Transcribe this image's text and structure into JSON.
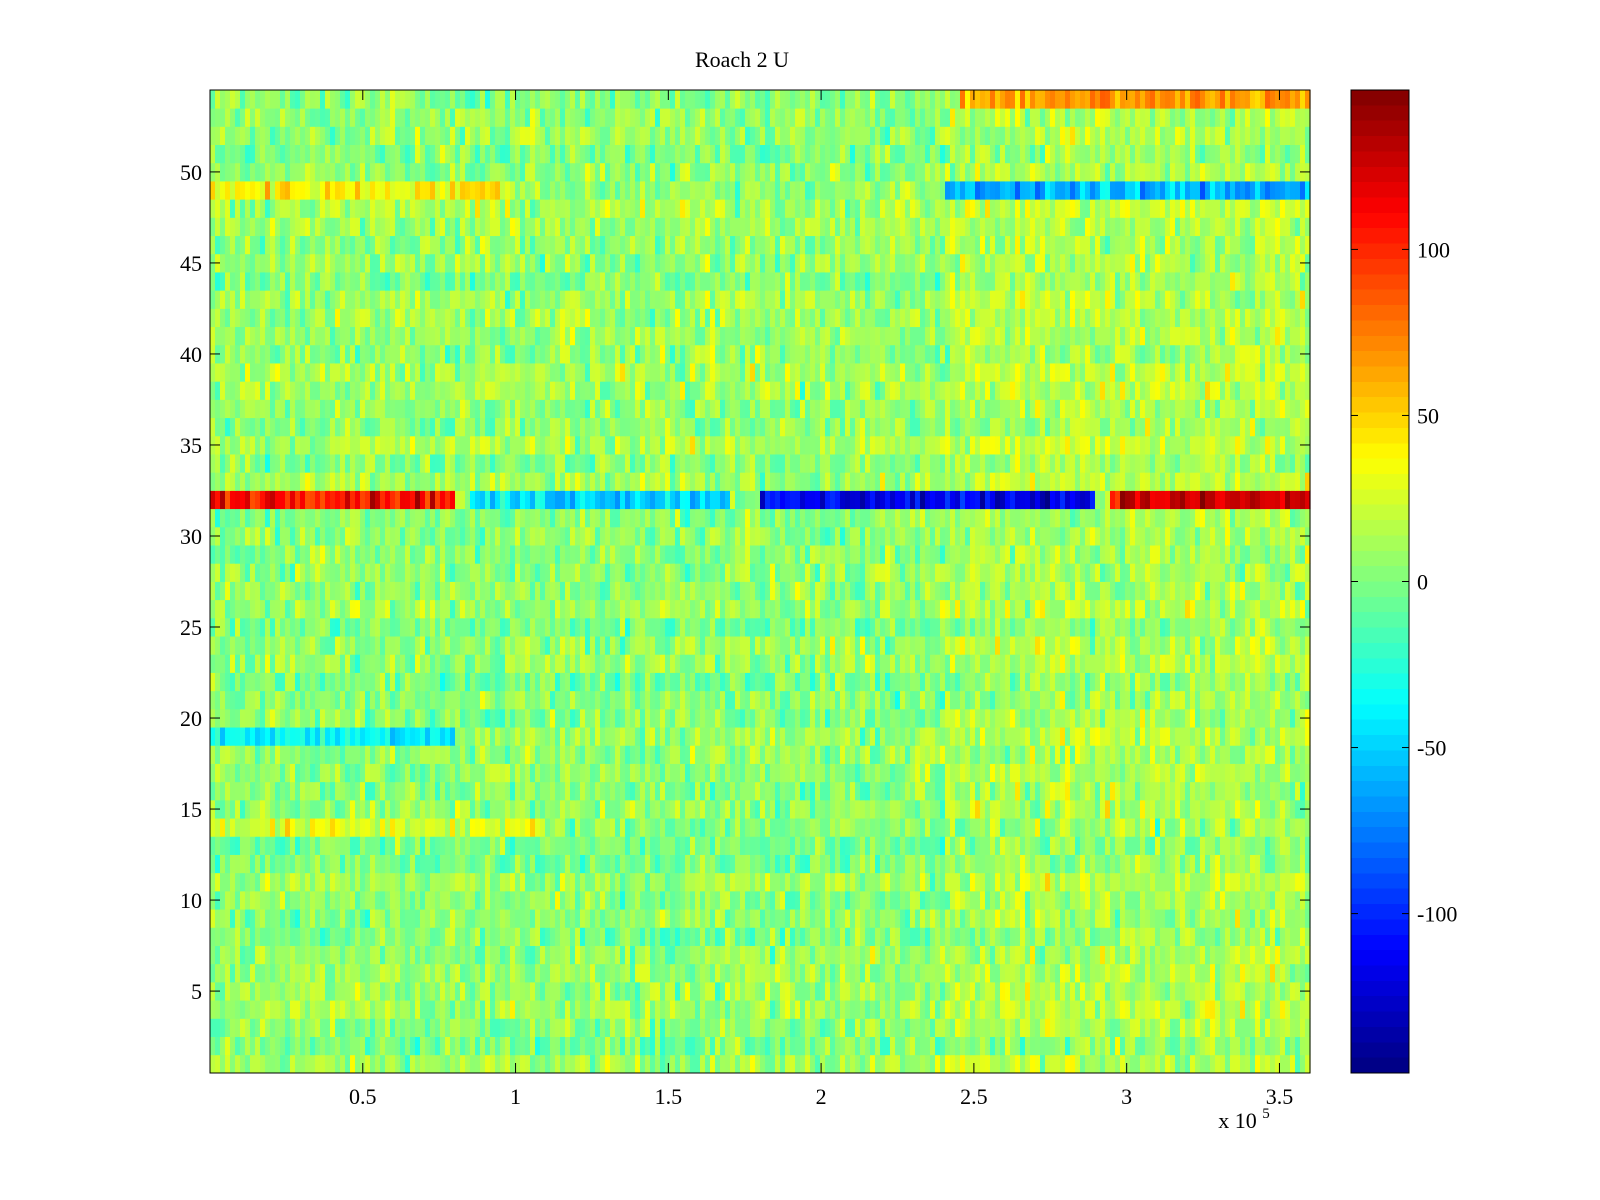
{
  "chart_data": {
    "type": "heatmap",
    "title": "Roach 2 U",
    "xlabel": "",
    "ylabel": "",
    "x_multiplier_base": "x 10",
    "x_multiplier_exponent": "5",
    "xlim": [
      0,
      360000
    ],
    "ylim": [
      0.5,
      54.5
    ],
    "rows": 54,
    "colormap": "jet",
    "clim": [
      -148,
      148
    ],
    "x_ticks": [
      0.5,
      1,
      1.5,
      2,
      2.5,
      3,
      3.5
    ],
    "x_tick_labels": [
      "0.5",
      "1",
      "1.5",
      "2",
      "2.5",
      "3",
      "3.5"
    ],
    "y_ticks": [
      5,
      10,
      15,
      20,
      25,
      30,
      35,
      40,
      45,
      50
    ],
    "y_tick_labels": [
      "5",
      "10",
      "15",
      "20",
      "25",
      "30",
      "35",
      "40",
      "45",
      "50"
    ],
    "colorbar_ticks": [
      -100,
      -50,
      0,
      50,
      100
    ],
    "colorbar_tick_labels": [
      "-100",
      "-50",
      "0",
      "50",
      "100"
    ],
    "grid": false,
    "notes_estimated_features": [
      {
        "row": 32,
        "x_range": [
          0,
          80000
        ],
        "value": 110
      },
      {
        "row": 32,
        "x_range": [
          85000,
          170000
        ],
        "value": -50
      },
      {
        "row": 32,
        "x_range": [
          180000,
          290000
        ],
        "value": -120
      },
      {
        "row": 32,
        "x_range": [
          295000,
          360000
        ],
        "value": 120
      },
      {
        "row": 54,
        "x_range": [
          245000,
          360000
        ],
        "value": 70
      },
      {
        "row": 49,
        "x_range": [
          0,
          100000
        ],
        "value": 40
      },
      {
        "row": 49,
        "x_range": [
          240000,
          360000
        ],
        "value": -60
      },
      {
        "row": 19,
        "x_range": [
          0,
          80000
        ],
        "value": -40
      },
      {
        "row": 14,
        "x_range": [
          0,
          110000
        ],
        "value": 30
      }
    ]
  }
}
